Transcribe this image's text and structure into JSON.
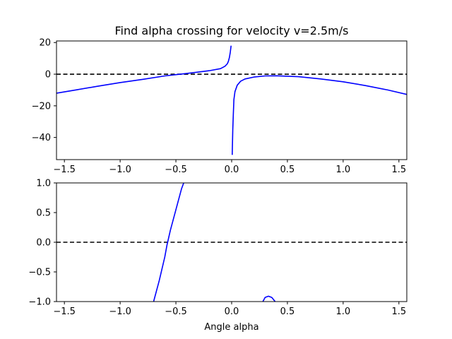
{
  "chart_data": [
    {
      "type": "line",
      "title": "Find alpha crossing for velocity v=2.5m/s",
      "xlabel": "",
      "ylabel": "",
      "xlim": [
        -1.5708,
        1.5708
      ],
      "ylim": [
        -54,
        21
      ],
      "grid": false,
      "xticks": [
        -1.5,
        -1.0,
        -0.5,
        0.0,
        0.5,
        1.0,
        1.5
      ],
      "xtick_labels": [
        "−1.5",
        "−1.0",
        "−0.5",
        "0.0",
        "0.5",
        "1.0",
        "1.5"
      ],
      "yticks": [
        20,
        0,
        -20,
        -40
      ],
      "ytick_labels": [
        "20",
        "0",
        "−20",
        "−40"
      ],
      "hlines": [
        {
          "y": 0,
          "style": "dashed",
          "color": "#000000"
        }
      ],
      "series": [
        {
          "color": "#0000ff",
          "segments": [
            [
              [
                -1.5708,
                -12.0
              ],
              [
                -1.4,
                -10.0
              ],
              [
                -1.2,
                -7.6
              ],
              [
                -1.0,
                -5.3
              ],
              [
                -0.8,
                -3.3
              ],
              [
                -0.6,
                -1.1
              ],
              [
                -0.5,
                -0.3
              ],
              [
                -0.4,
                0.5
              ],
              [
                -0.3,
                1.3
              ],
              [
                -0.2,
                2.2
              ],
              [
                -0.1,
                3.5
              ],
              [
                -0.06,
                5.0
              ],
              [
                -0.04,
                6.5
              ],
              [
                -0.03,
                8.0
              ],
              [
                -0.02,
                10.5
              ],
              [
                -0.012,
                14.0
              ],
              [
                -0.005,
                18.0
              ]
            ],
            [
              [
                0.005,
                -51.0
              ],
              [
                0.01,
                -35.0
              ],
              [
                0.015,
                -25.0
              ],
              [
                0.02,
                -16.0
              ],
              [
                0.03,
                -11.0
              ],
              [
                0.05,
                -7.0
              ],
              [
                0.08,
                -4.5
              ],
              [
                0.12,
                -3.0
              ],
              [
                0.2,
                -1.8
              ],
              [
                0.3,
                -1.1
              ],
              [
                0.4,
                -1.0
              ],
              [
                0.6,
                -1.6
              ],
              [
                0.8,
                -3.0
              ],
              [
                1.0,
                -4.8
              ],
              [
                1.2,
                -7.2
              ],
              [
                1.4,
                -10.0
              ],
              [
                1.5708,
                -12.8
              ]
            ]
          ]
        }
      ]
    },
    {
      "type": "line",
      "title": "",
      "xlabel": "Angle alpha",
      "ylabel": "",
      "xlim": [
        -1.5708,
        1.5708
      ],
      "ylim": [
        -1.0,
        1.0
      ],
      "grid": false,
      "xticks": [
        -1.5,
        -1.0,
        -0.5,
        0.0,
        0.5,
        1.0,
        1.5
      ],
      "xtick_labels": [
        "−1.5",
        "−1.0",
        "−0.5",
        "0.0",
        "0.5",
        "1.0",
        "1.5"
      ],
      "yticks": [
        1.0,
        0.5,
        0.0,
        -0.5,
        -1.0
      ],
      "ytick_labels": [
        "1.0",
        "0.5",
        "0.0",
        "−0.5",
        "−1.0"
      ],
      "hlines": [
        {
          "y": 0,
          "style": "dashed",
          "color": "#000000"
        }
      ],
      "series": [
        {
          "color": "#0000ff",
          "segments": [
            [
              [
                -0.7,
                -1.0
              ],
              [
                -0.65,
                -0.65
              ],
              [
                -0.6,
                -0.25
              ],
              [
                -0.58,
                -0.05
              ],
              [
                -0.55,
                0.2
              ],
              [
                -0.5,
                0.55
              ],
              [
                -0.45,
                0.9
              ],
              [
                -0.43,
                1.0
              ]
            ],
            [
              [
                0.28,
                -1.0
              ],
              [
                0.3,
                -0.93
              ],
              [
                0.33,
                -0.91
              ],
              [
                0.36,
                -0.93
              ],
              [
                0.39,
                -1.0
              ]
            ]
          ]
        }
      ]
    }
  ]
}
